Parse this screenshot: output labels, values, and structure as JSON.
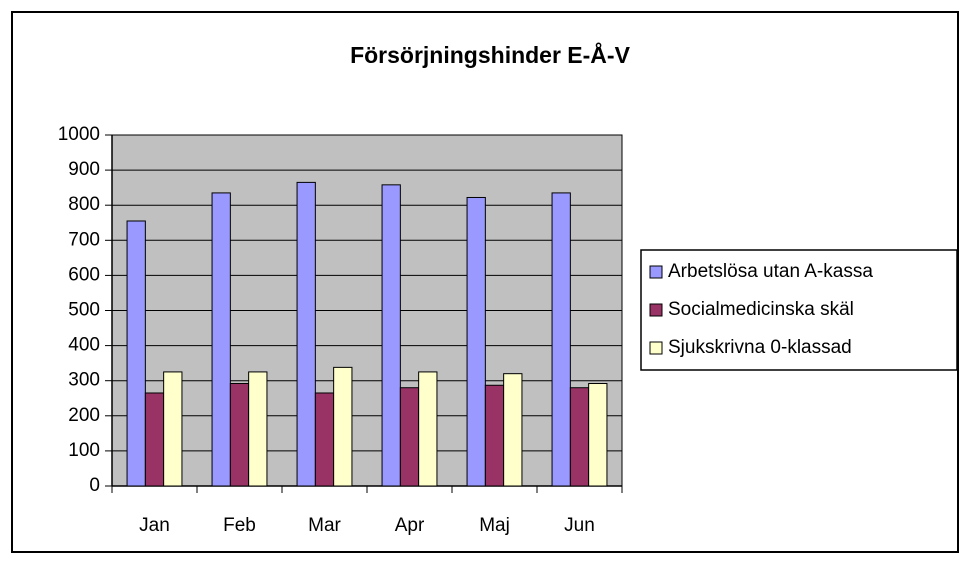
{
  "chart_data": {
    "type": "bar",
    "title": "Försörjningshinder E-Å-V",
    "categories": [
      "Jan",
      "Feb",
      "Mar",
      "Apr",
      "Maj",
      "Jun"
    ],
    "series": [
      {
        "name": "Arbetslösa utan A-kassa",
        "color": "#9999ff",
        "values": [
          755,
          835,
          865,
          858,
          822,
          835
        ]
      },
      {
        "name": "Socialmedicinska skäl",
        "color": "#993366",
        "values": [
          265,
          292,
          265,
          280,
          287,
          280
        ]
      },
      {
        "name": "Sjukskrivna 0-klassad",
        "color": "#ffffcc",
        "values": [
          325,
          325,
          338,
          325,
          320,
          292
        ]
      }
    ],
    "ylim": [
      0,
      1000
    ],
    "yticks": [
      0,
      100,
      200,
      300,
      400,
      500,
      600,
      700,
      800,
      900,
      1000
    ],
    "grid": true,
    "legend": "right",
    "plot_background": "#c0c0c0"
  }
}
